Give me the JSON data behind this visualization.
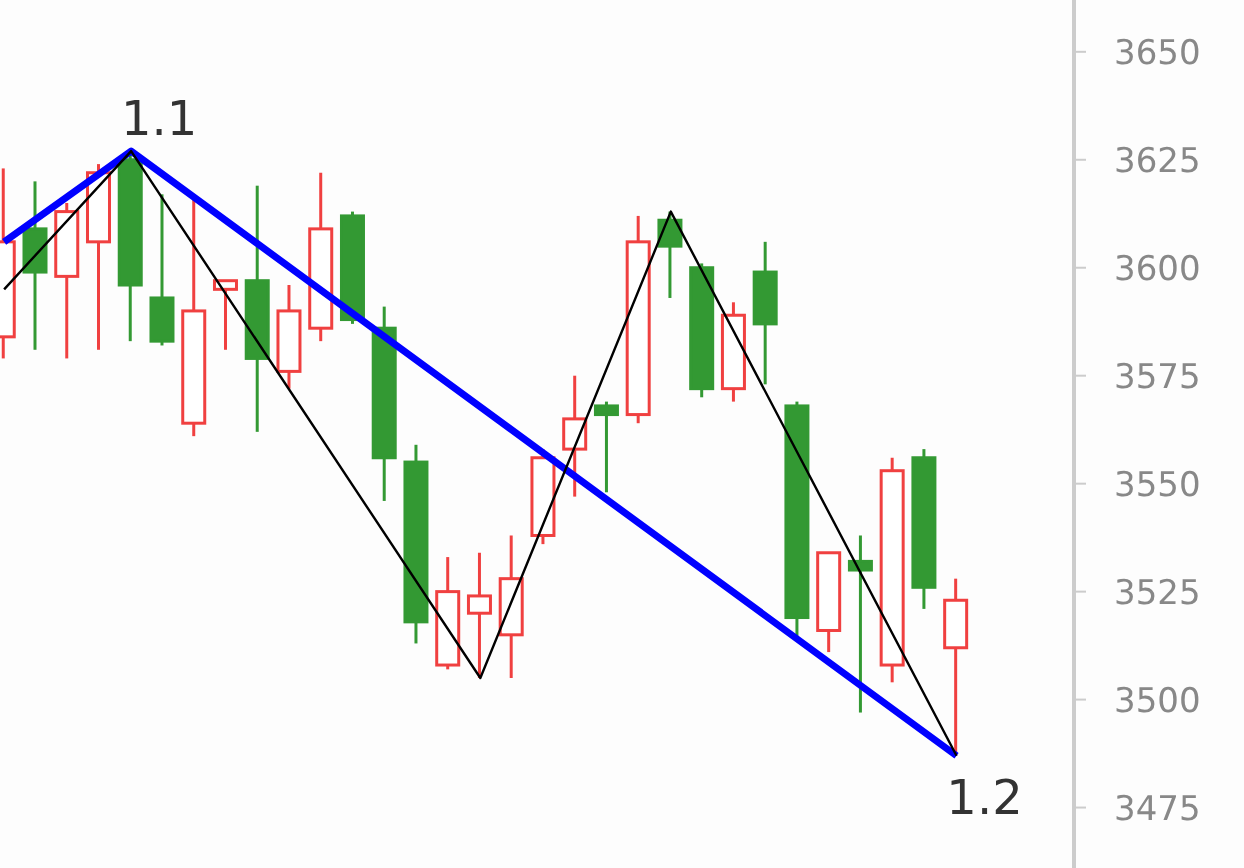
{
  "chart_data": {
    "type": "candlestick",
    "categories": [
      null,
      null,
      null,
      null,
      null,
      null,
      null,
      null,
      null,
      null,
      null,
      null,
      null,
      null,
      null,
      null,
      null,
      null,
      null,
      null,
      null,
      null,
      null,
      null,
      null,
      null,
      null,
      null,
      null,
      null,
      null
    ],
    "ohlc": [
      [
        3584,
        3623,
        3579,
        3606
      ],
      [
        3609,
        3620,
        3581,
        3599
      ],
      [
        3598,
        3615,
        3579,
        3613
      ],
      [
        3606,
        3624,
        3581,
        3622
      ],
      [
        3625,
        3627,
        3583,
        3596
      ],
      [
        3593,
        3617,
        3582,
        3583
      ],
      [
        3564,
        3616,
        3561,
        3590
      ],
      [
        3595,
        3597,
        3581,
        3597
      ],
      [
        3597,
        3619,
        3562,
        3579
      ],
      [
        3576,
        3596,
        3572,
        3590
      ],
      [
        3586,
        3622,
        3583,
        3609
      ],
      [
        3612,
        3613,
        3587,
        3588
      ],
      [
        3586,
        3591,
        3546,
        3556
      ],
      [
        3555,
        3559,
        3513,
        3518
      ],
      [
        3508,
        3533,
        3507,
        3525
      ],
      [
        3520,
        3534,
        3505,
        3524
      ],
      [
        3515,
        3538,
        3505,
        3528
      ],
      [
        3538,
        3558,
        3536,
        3556
      ],
      [
        3558,
        3575,
        3547,
        3565
      ],
      [
        3568,
        3569,
        3548,
        3566
      ],
      [
        3566,
        3612,
        3564,
        3606
      ],
      [
        3611,
        3613,
        3593,
        3605
      ],
      [
        3600,
        3601,
        3570,
        3572
      ],
      [
        3572,
        3592,
        3569,
        3589
      ],
      [
        3599,
        3606,
        3573,
        3587
      ],
      [
        3568,
        3569,
        3514,
        3519
      ],
      [
        3516,
        3534,
        3511,
        3534
      ],
      [
        3532,
        3538,
        3497,
        3530
      ],
      [
        3508,
        3556,
        3504,
        3553
      ],
      [
        3556,
        3558,
        3521,
        3526
      ],
      [
        3512,
        3528,
        3487,
        3523
      ]
    ],
    "colors": [
      "#f04040",
      "#339933",
      "#f04040",
      "#f04040",
      "#339933",
      "#339933",
      "#f04040",
      "#f04040",
      "#339933",
      "#f04040",
      "#f04040",
      "#339933",
      "#339933",
      "#339933",
      "#f04040",
      "#f04040",
      "#f04040",
      "#f04040",
      "#f04040",
      "#339933",
      "#f04040",
      "#339933",
      "#339933",
      "#f04040",
      "#339933",
      "#339933",
      "#f04040",
      "#339933",
      "#f04040",
      "#339933",
      "#f04040"
    ],
    "series": [
      {
        "type": "line",
        "color": "#0000ff",
        "values": [
          3606,
          null,
          null,
          null,
          3627,
          null,
          null,
          null,
          null,
          null,
          null,
          null,
          null,
          null,
          null,
          null,
          null,
          null,
          null,
          null,
          null,
          null,
          null,
          null,
          null,
          null,
          null,
          null,
          null,
          null,
          3487
        ]
      },
      {
        "type": "line",
        "color": "#000000",
        "values": [
          3595,
          null,
          null,
          null,
          3627,
          null,
          null,
          null,
          null,
          null,
          null,
          null,
          null,
          null,
          null,
          3505,
          null,
          null,
          null,
          null,
          null,
          3613,
          null,
          null,
          null,
          null,
          null,
          null,
          null,
          null,
          3487
        ]
      }
    ],
    "annotations": [
      "1.1",
      "1.2"
    ],
    "ylim": [
      3461,
      3662
    ],
    "yticks": [
      3475,
      3500,
      3525,
      3550,
      3575,
      3600,
      3625,
      3650
    ],
    "marker": "none"
  }
}
